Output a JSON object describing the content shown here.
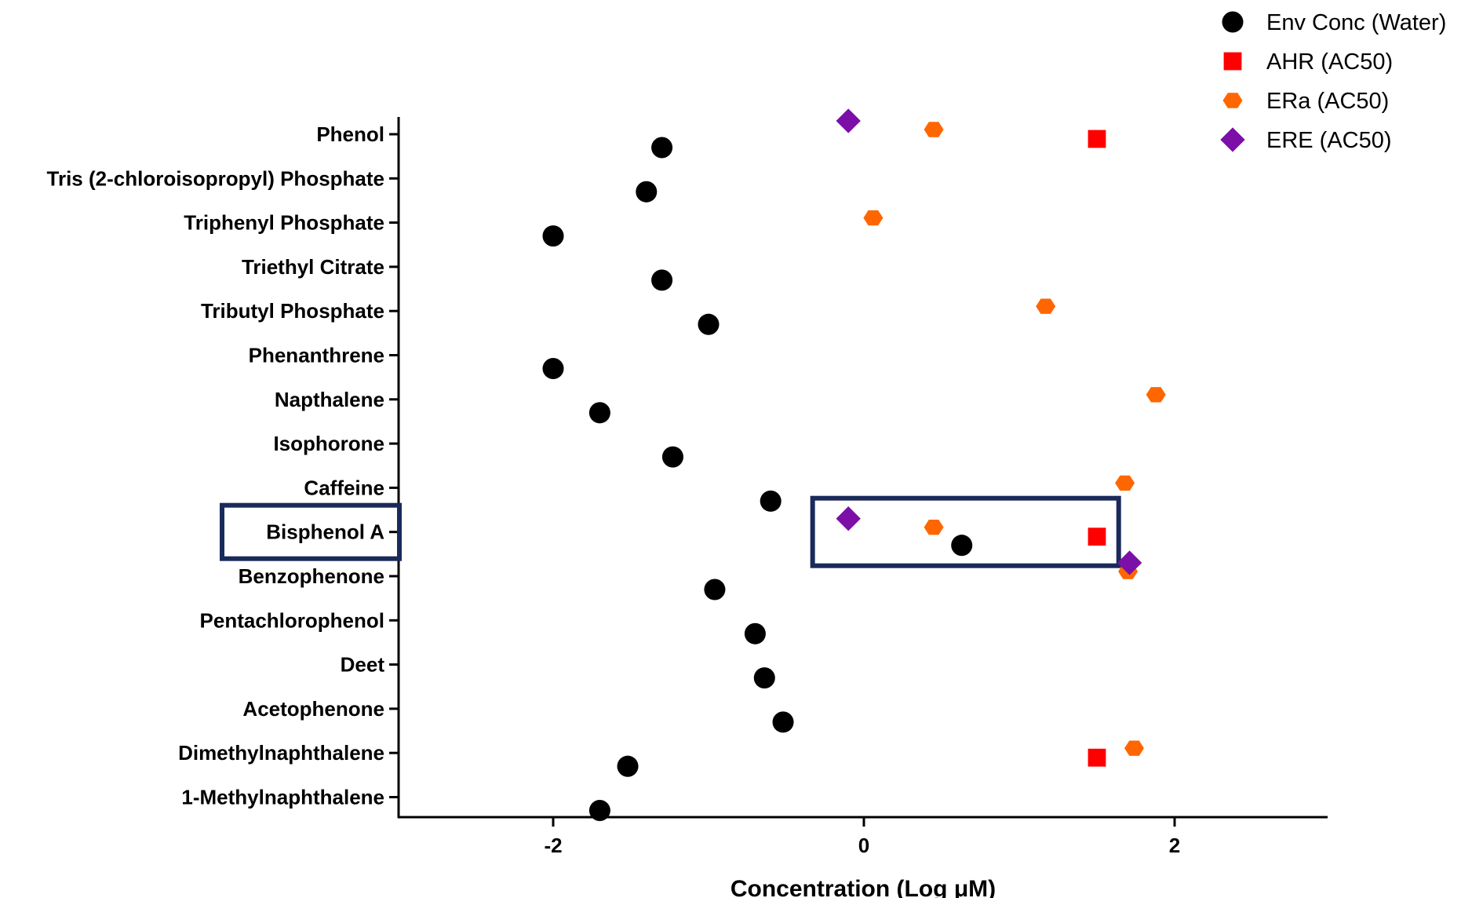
{
  "chart_data": {
    "type": "scatter",
    "orientation": "horizontal-categories",
    "categories": [
      "Phenol",
      "Tris (2-chloroisopropyl) Phosphate",
      "Triphenyl Phosphate",
      "Triethyl Citrate",
      "Tributyl Phosphate",
      "Phenanthrene",
      "Napthalene",
      "Isophorone",
      "Caffeine",
      "Bisphenol A",
      "Benzophenone",
      "Pentachlorophenol",
      "Deet",
      "Acetophenone",
      "Dimethylnaphthalene",
      "1-Methylnaphthalene"
    ],
    "xlabel": "Concentration (Log μM)",
    "ylabel": "",
    "xlim": [
      -3,
      3
    ],
    "xticks": [
      -2,
      0,
      2
    ],
    "xtick_labels": [
      "-2",
      "0",
      "2"
    ],
    "grid": false,
    "legend_position": "top-right",
    "highlighted_category": "Bisphenol A",
    "series": [
      {
        "name": "Env Conc (Water)",
        "marker": "circle",
        "color": "#000000",
        "points": [
          {
            "category": "Phenol",
            "x": -1.3
          },
          {
            "category": "Tris (2-chloroisopropyl) Phosphate",
            "x": -1.4
          },
          {
            "category": "Triphenyl Phosphate",
            "x": -2.0
          },
          {
            "category": "Triethyl Citrate",
            "x": -1.3
          },
          {
            "category": "Tributyl Phosphate",
            "x": -1.0
          },
          {
            "category": "Phenanthrene",
            "x": -2.0
          },
          {
            "category": "Napthalene",
            "x": -1.7
          },
          {
            "category": "Isophorone",
            "x": -1.23
          },
          {
            "category": "Caffeine",
            "x": -0.6
          },
          {
            "category": "Bisphenol A",
            "x": 0.63
          },
          {
            "category": "Benzophenone",
            "x": -0.96
          },
          {
            "category": "Pentachlorophenol",
            "x": -0.7
          },
          {
            "category": "Deet",
            "x": -0.64
          },
          {
            "category": "Acetophenone",
            "x": -0.52
          },
          {
            "category": "Dimethylnaphthalene",
            "x": -1.52
          },
          {
            "category": "1-Methylnaphthalene",
            "x": -1.7
          }
        ]
      },
      {
        "name": "AHR (AC50)",
        "marker": "square",
        "color": "#ff0000",
        "points": [
          {
            "category": "Phenol",
            "x": 1.5
          },
          {
            "category": "Bisphenol A",
            "x": 1.5
          },
          {
            "category": "Dimethylnaphthalene",
            "x": 1.5
          }
        ]
      },
      {
        "name": "ERa (AC50)",
        "marker": "hexagon",
        "color": "#ff6600",
        "points": [
          {
            "category": "Phenol",
            "x": 0.45
          },
          {
            "category": "Triphenyl Phosphate",
            "x": 0.06
          },
          {
            "category": "Tributyl Phosphate",
            "x": 1.17
          },
          {
            "category": "Napthalene",
            "x": 1.88
          },
          {
            "category": "Caffeine",
            "x": 1.68
          },
          {
            "category": "Bisphenol A",
            "x": 0.45
          },
          {
            "category": "Benzophenone",
            "x": 1.7
          },
          {
            "category": "Dimethylnaphthalene",
            "x": 1.74
          }
        ]
      },
      {
        "name": "ERE (AC50)",
        "marker": "diamond",
        "color": "#7b0fa8",
        "points": [
          {
            "category": "Phenol",
            "x": -0.1
          },
          {
            "category": "Bisphenol A",
            "x": -0.1
          },
          {
            "category": "Benzophenone",
            "x": 1.71
          }
        ]
      }
    ]
  }
}
